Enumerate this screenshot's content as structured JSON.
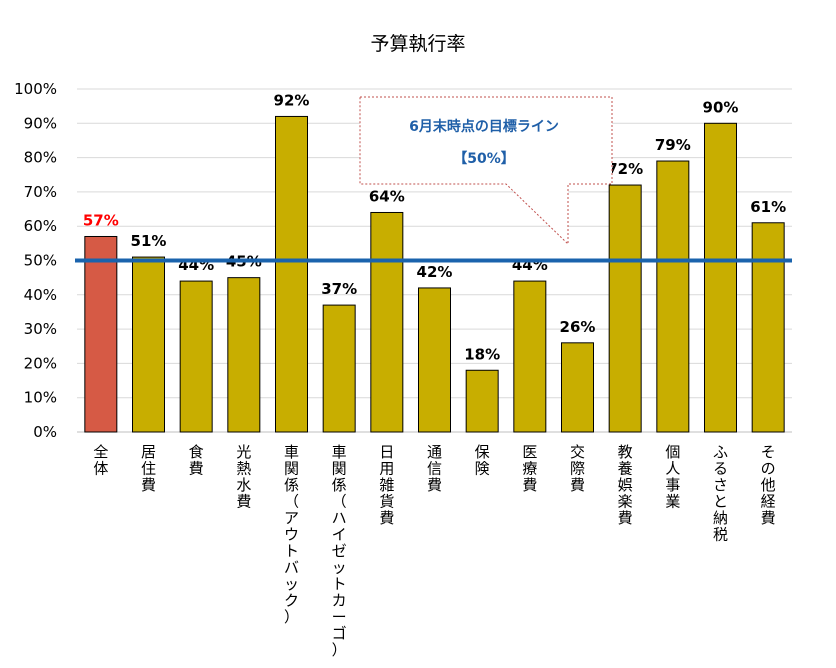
{
  "chart_data": {
    "type": "bar",
    "title": "予算執行率",
    "categories": [
      "全体",
      "居住費",
      "食費",
      "光熱水費",
      "車関係（アウトバック）",
      "車関係（ハイゼットカーゴ）",
      "日用雑貨費",
      "通信費",
      "保険",
      "医療費",
      "交際費",
      "教養娯楽費",
      "個人事業",
      "ふるさと納税",
      "その他経費"
    ],
    "values": [
      57,
      51,
      44,
      45,
      92,
      37,
      64,
      42,
      18,
      44,
      26,
      72,
      79,
      90,
      61
    ],
    "value_labels": [
      "57%",
      "51%",
      "44%",
      "45%",
      "92%",
      "37%",
      "64%",
      "42%",
      "18%",
      "44%",
      "26%",
      "72%",
      "79%",
      "90%",
      "61%"
    ],
    "yticks": [
      "0%",
      "10%",
      "20%",
      "30%",
      "40%",
      "50%",
      "60%",
      "70%",
      "80%",
      "90%",
      "100%"
    ],
    "ylim": [
      0,
      100
    ],
    "grid": true,
    "target_line": {
      "value": 50,
      "label_line1": "6月末時点の目標ライン",
      "label_line2": "【50%】"
    },
    "colors": {
      "bar": "#c8ae00",
      "highlight_bar": "#d65a45",
      "highlight_label": "#ff0000",
      "target_line": "#1a63ad",
      "callout_text": "#1f5fa8",
      "grid": "#d9d9d9"
    },
    "highlight_index": 0
  }
}
